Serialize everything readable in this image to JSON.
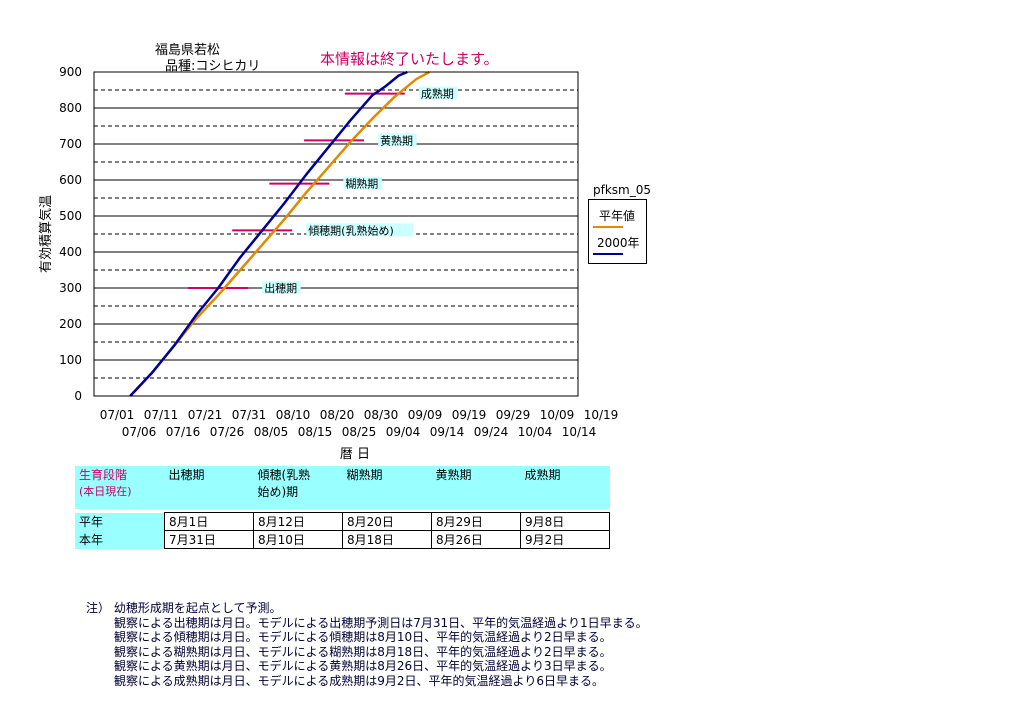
{
  "header": {
    "location": "福島県若松",
    "variety": "品種:コシヒカリ",
    "notice": "本情報は終了いたします。",
    "notice_color": "#cc0066"
  },
  "legend": {
    "title": "pfksm_05",
    "items": [
      {
        "label": "平年値",
        "color": "#e08a00"
      },
      {
        "label": "2000年",
        "color": "#000099"
      }
    ]
  },
  "chart_data": {
    "type": "line",
    "ylabel": "有効積算気温",
    "xlabel": "暦 日",
    "ylim": [
      0,
      900
    ],
    "yticks": [
      0,
      100,
      200,
      300,
      400,
      500,
      600,
      700,
      800,
      900
    ],
    "grid": "solid at 100s, dashed at 50s",
    "x_tick_labels_top": [
      "07/01",
      "07/11",
      "07/21",
      "07/31",
      "08/10",
      "08/20",
      "08/30",
      "09/09",
      "09/19",
      "09/29",
      "10/09",
      "10/19"
    ],
    "x_tick_labels_bottom": [
      "07/06",
      "07/16",
      "07/26",
      "08/05",
      "08/15",
      "08/25",
      "09/04",
      "09/14",
      "09/24",
      "10/04",
      "10/14"
    ],
    "series": [
      {
        "name": "平年値",
        "color": "#e08a00",
        "x": [
          "07/04",
          "07/09",
          "07/14",
          "07/19",
          "07/24",
          "07/29",
          "08/03",
          "08/08",
          "08/13",
          "08/18",
          "08/23",
          "08/28",
          "09/02",
          "09/07",
          "09/10"
        ],
        "y": [
          0,
          65,
          140,
          215,
          280,
          350,
          420,
          490,
          565,
          635,
          705,
          770,
          830,
          880,
          900
        ]
      },
      {
        "name": "2000年",
        "color": "#000099",
        "x": [
          "07/04",
          "07/09",
          "07/14",
          "07/19",
          "07/24",
          "07/29",
          "08/03",
          "08/08",
          "08/13",
          "08/18",
          "08/23",
          "08/28",
          "08/31",
          "09/03",
          "09/05"
        ],
        "y": [
          0,
          65,
          140,
          225,
          300,
          385,
          460,
          535,
          615,
          690,
          765,
          835,
          860,
          890,
          900
        ]
      }
    ],
    "stages": [
      {
        "label": "出穂期",
        "value": 300
      },
      {
        "label": "傾穂期(乳熟始め)",
        "value": 460
      },
      {
        "label": "糊熟期",
        "value": 590
      },
      {
        "label": "黄熟期",
        "value": 710
      },
      {
        "label": "成熟期",
        "value": 840
      }
    ],
    "stage_marker_color": "#cc0066"
  },
  "stage_table": {
    "header_label_1": "生育段階",
    "header_label_2": "(本日現在)",
    "columns": [
      "出穂期",
      "傾穂(乳熟\n始め)期",
      "糊熟期",
      "黄熟期",
      "成熟期"
    ],
    "rows": [
      {
        "label": "平年",
        "values": [
          "8月1日",
          "8月12日",
          "8月20日",
          "8月29日",
          "9月8日"
        ]
      },
      {
        "label": "本年",
        "values": [
          "7月31日",
          "8月10日",
          "8月18日",
          "8月26日",
          "9月2日"
        ]
      }
    ]
  },
  "notes": {
    "lines": [
      "注） 幼穂形成期を起点として予測。",
      "観察による出穂期は月日。モデルによる出穂期予測日は7月31日、平年的気温経過より1日早まる。",
      "観察による傾穂期は月日。モデルによる傾穂期は8月10日、平年的気温経過より2日早まる。",
      "観察による糊熟期は月日、モデルによる糊熟期は8月18日、平年的気温経過より2日早まる。",
      "観察による黄熟期は月日、モデルによる黄熟期は8月26日、平年的気温経過より3日早まる。",
      "観察による成熟期は月日、モデルによる成熟期は9月2日、平年的気温経過より6日早まる。"
    ]
  }
}
